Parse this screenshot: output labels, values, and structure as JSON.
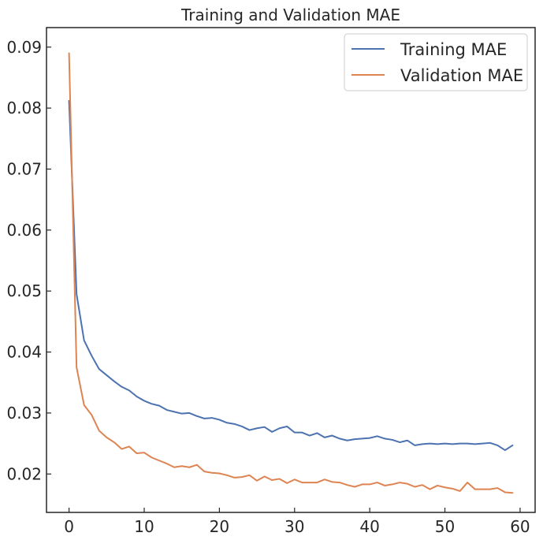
{
  "chart_data": {
    "type": "line",
    "title": "Training and Validation MAE",
    "xlabel": "",
    "ylabel": "",
    "xlim": [
      -3,
      62
    ],
    "ylim": [
      0.0137,
      0.0932
    ],
    "xticks": [
      0,
      10,
      20,
      30,
      40,
      50,
      60
    ],
    "yticks": [
      0.02,
      0.03,
      0.04,
      0.05,
      0.06,
      0.07,
      0.08,
      0.09
    ],
    "xtick_labels": [
      "0",
      "10",
      "20",
      "30",
      "40",
      "50",
      "60"
    ],
    "ytick_labels": [
      "0.02",
      "0.03",
      "0.04",
      "0.05",
      "0.06",
      "0.07",
      "0.08",
      "0.09"
    ],
    "grid": false,
    "legend_position": "top-right",
    "x": [
      0,
      1,
      2,
      3,
      4,
      5,
      6,
      7,
      8,
      9,
      10,
      11,
      12,
      13,
      14,
      15,
      16,
      17,
      18,
      19,
      20,
      21,
      22,
      23,
      24,
      25,
      26,
      27,
      28,
      29,
      30,
      31,
      32,
      33,
      34,
      35,
      36,
      37,
      38,
      39,
      40,
      41,
      42,
      43,
      44,
      45,
      46,
      47,
      48,
      49,
      50,
      51,
      52,
      53,
      54,
      55,
      56,
      57,
      58,
      59
    ],
    "series": [
      {
        "name": "Training MAE",
        "color": "#4c72b0",
        "values": [
          0.0812,
          0.0495,
          0.0419,
          0.0394,
          0.0372,
          0.0362,
          0.0352,
          0.0343,
          0.0337,
          0.0327,
          0.032,
          0.0315,
          0.0312,
          0.0305,
          0.0302,
          0.0299,
          0.03,
          0.0295,
          0.0291,
          0.0292,
          0.0289,
          0.0284,
          0.0282,
          0.0278,
          0.0272,
          0.0275,
          0.0277,
          0.0269,
          0.0275,
          0.0278,
          0.0268,
          0.0268,
          0.0263,
          0.0267,
          0.026,
          0.0263,
          0.0258,
          0.0255,
          0.0257,
          0.0258,
          0.0259,
          0.0262,
          0.0258,
          0.0256,
          0.0252,
          0.0255,
          0.0247,
          0.0249,
          0.025,
          0.0249,
          0.025,
          0.0249,
          0.025,
          0.025,
          0.0249,
          0.025,
          0.0251,
          0.0247,
          0.0239,
          0.0247
        ]
      },
      {
        "name": "Validation MAE",
        "color": "#dd8452",
        "values": [
          0.089,
          0.0375,
          0.0313,
          0.0297,
          0.0271,
          0.026,
          0.0252,
          0.0241,
          0.0245,
          0.0234,
          0.0235,
          0.0227,
          0.0222,
          0.0217,
          0.0211,
          0.0213,
          0.0211,
          0.0215,
          0.0204,
          0.0202,
          0.0201,
          0.0198,
          0.0194,
          0.0195,
          0.0198,
          0.0189,
          0.0196,
          0.019,
          0.0192,
          0.0185,
          0.0191,
          0.0186,
          0.0186,
          0.0186,
          0.0191,
          0.0187,
          0.0186,
          0.0182,
          0.0179,
          0.0183,
          0.0183,
          0.0186,
          0.0181,
          0.0183,
          0.0186,
          0.0184,
          0.0179,
          0.0182,
          0.0175,
          0.0181,
          0.0178,
          0.0176,
          0.0172,
          0.0186,
          0.0175,
          0.0175,
          0.0175,
          0.0177,
          0.017,
          0.0169
        ]
      }
    ]
  }
}
